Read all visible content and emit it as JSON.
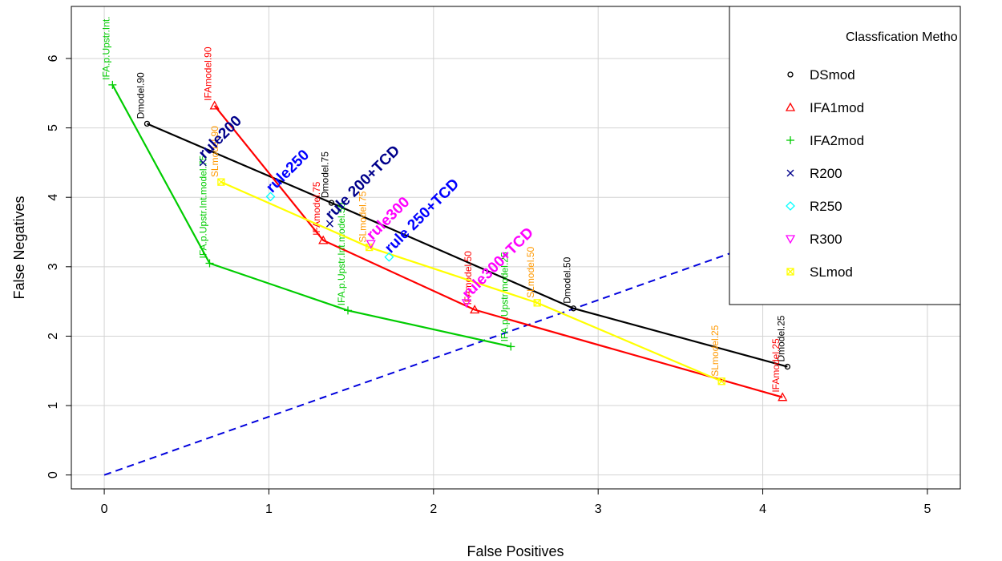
{
  "chart_data": {
    "type": "line",
    "xlabel": "False Positives",
    "ylabel": "False Negatives",
    "xlim": [
      -0.2,
      5.2
    ],
    "ylim": [
      -0.2,
      6.75
    ],
    "x_ticks": [
      0,
      1,
      2,
      3,
      4,
      5
    ],
    "y_ticks": [
      0,
      1,
      2,
      3,
      4,
      5,
      6
    ],
    "grid": true,
    "legend": {
      "title": "Classfication Metho",
      "placement": "top-right",
      "entries": [
        {
          "label": "DSmod",
          "color": "#000000",
          "marker": "circle"
        },
        {
          "label": "IFA1mod",
          "color": "#ff0000",
          "marker": "triangle"
        },
        {
          "label": "IFA2mod",
          "color": "#00cc00",
          "marker": "plus"
        },
        {
          "label": "R200",
          "color": "#00008b",
          "marker": "x"
        },
        {
          "label": "R250",
          "color": "#00ffff",
          "marker": "diamond"
        },
        {
          "label": "R300",
          "color": "#ff00ff",
          "marker": "triangle-down"
        },
        {
          "label": "SLmod",
          "color": "#ffff00",
          "marker": "square-x"
        }
      ]
    },
    "reference_line": {
      "x": [
        0,
        5
      ],
      "y": [
        0,
        4.2
      ],
      "color": "#0000dd",
      "style": "dashed"
    },
    "series": [
      {
        "color": "#000000",
        "marker": "circle",
        "x": [
          0.26,
          1.38,
          2.85,
          4.15
        ],
        "y": [
          5.06,
          3.92,
          2.4,
          1.56
        ],
        "labels": [
          "Dmodel.90",
          "Dmodel.75",
          "Dmodel.50",
          "Dmodel.25"
        ]
      },
      {
        "color": "#ff0000",
        "marker": "triangle",
        "x": [
          0.67,
          1.33,
          2.25,
          4.12
        ],
        "y": [
          5.32,
          3.38,
          2.38,
          1.12
        ],
        "labels": [
          "IFAmodel.90",
          "IFAmodel.75",
          "IFAmodel.50",
          "IFAmodel.25"
        ]
      },
      {
        "color": "#00cc00",
        "marker": "plus",
        "x": [
          0.05,
          0.64,
          1.48,
          2.47
        ],
        "y": [
          5.62,
          3.05,
          2.37,
          1.85
        ],
        "labels": [
          "IFA.p.Upstr.Int.",
          "IFA.p.Upstr.Int.model.75",
          "IFA.p.Upstr.Int.model.50",
          "IFA.p.Upstr.model.25"
        ]
      },
      {
        "color": "#ffff00",
        "marker": "square-x",
        "x": [
          0.71,
          1.61,
          2.63,
          3.75
        ],
        "y": [
          4.22,
          3.28,
          2.48,
          1.35
        ],
        "labels": [
          "SLmodel.90",
          "SLmodel.75",
          "SLmodel.50",
          "SLmodel.25"
        ]
      }
    ],
    "rule_points": [
      {
        "name": "rule200",
        "x": 0.6,
        "y": 4.5,
        "color": "#00008b",
        "marker": "x"
      },
      {
        "name": "rule250",
        "x": 1.01,
        "y": 4.01,
        "color": "#00ffff",
        "marker": "diamond"
      },
      {
        "name": "rule 200+TCD",
        "x": 1.37,
        "y": 3.62,
        "color": "#00008b",
        "marker": "x"
      },
      {
        "name": "rule300",
        "x": 1.62,
        "y": 3.33,
        "color": "#ff00ff",
        "marker": "triangle-down"
      },
      {
        "name": "rule 250+TCD",
        "x": 1.73,
        "y": 3.14,
        "color": "#00ffff",
        "marker": "diamond"
      },
      {
        "name": "rule300+TCD",
        "x": 2.2,
        "y": 2.48,
        "color": "#ff00ff",
        "marker": "triangle-down"
      }
    ]
  }
}
